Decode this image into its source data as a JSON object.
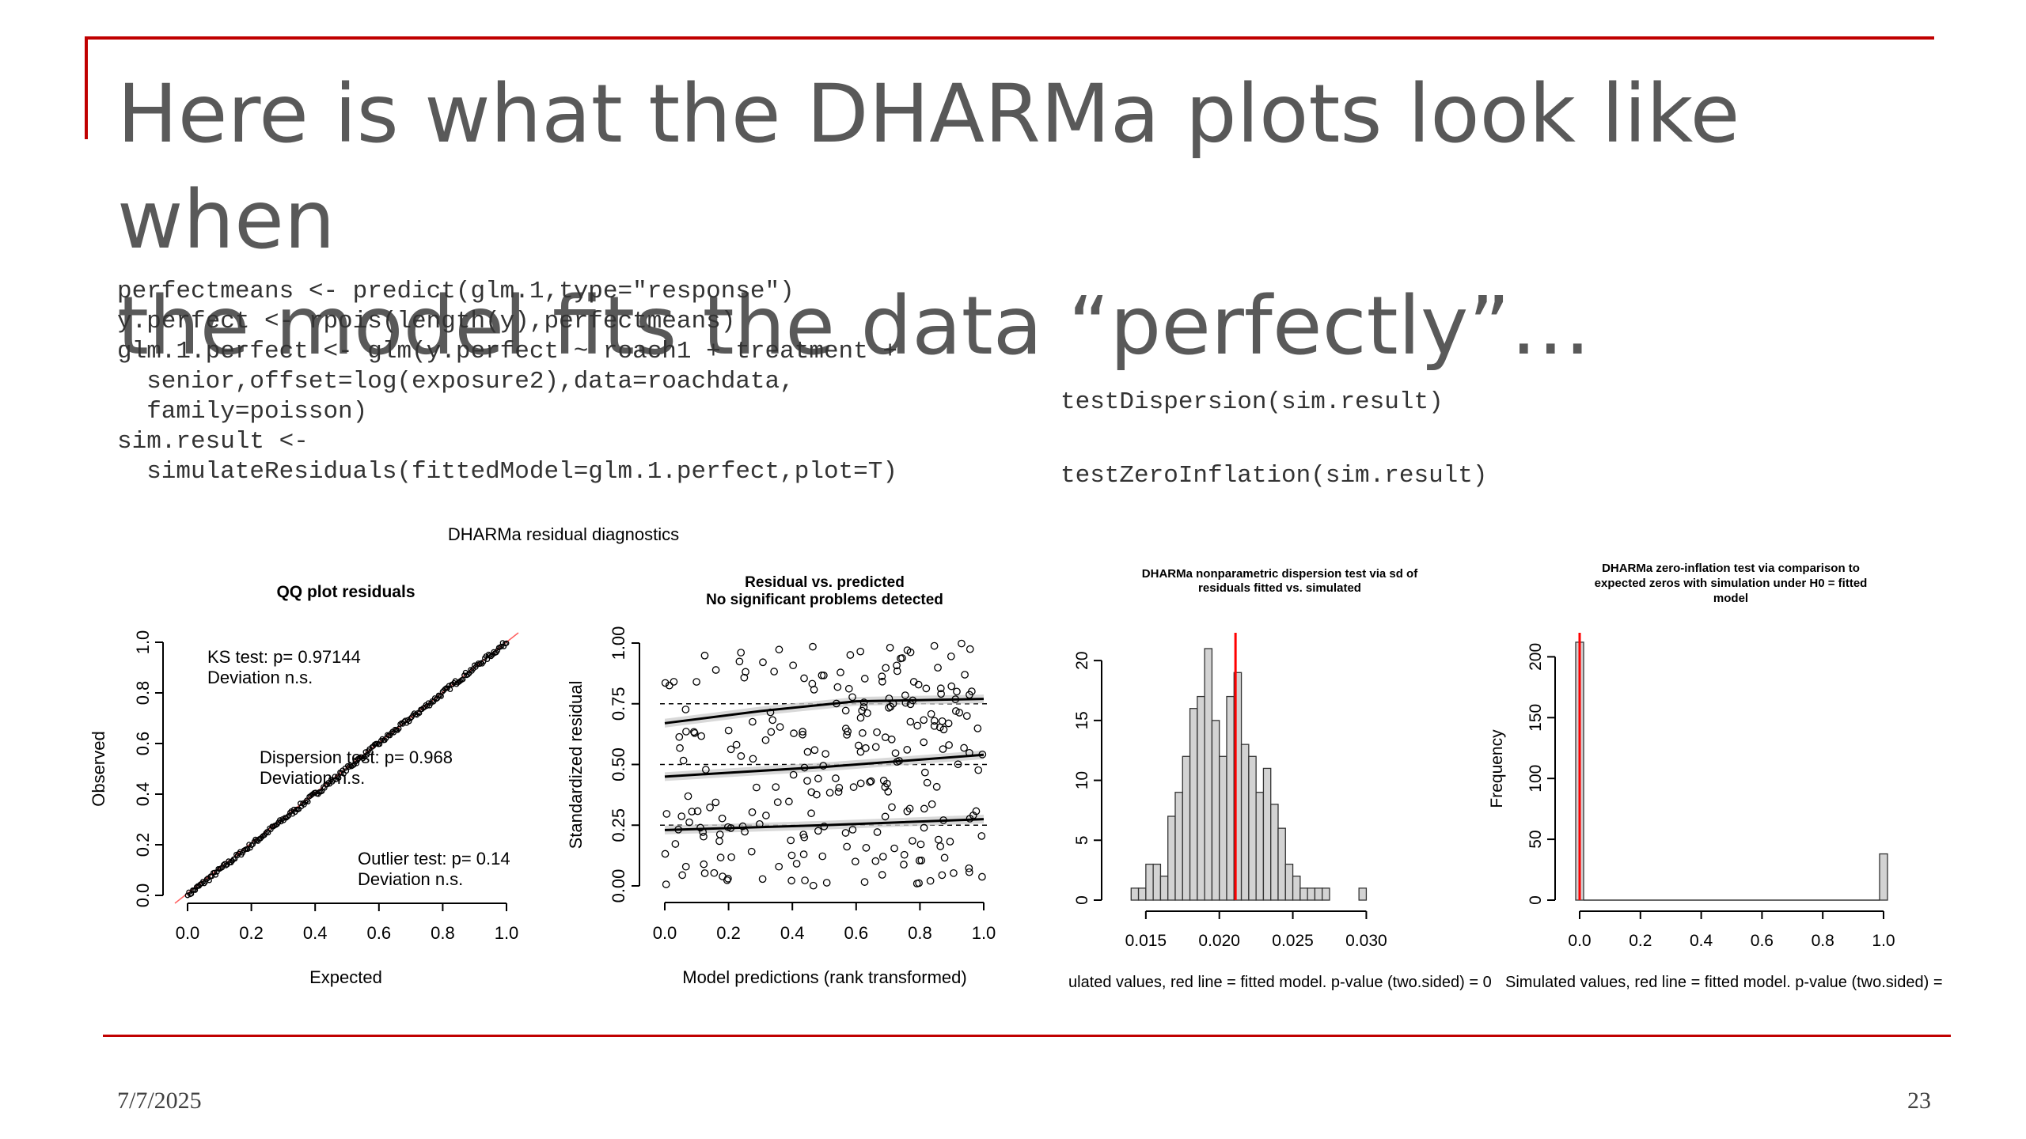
{
  "slide": {
    "title_line1": "Here is what the DHARMa plots look like when",
    "title_line2": "the model fits the data “perfectly”…",
    "date": "7/7/2025",
    "page_number": "23"
  },
  "code_left": [
    "perfectmeans <- predict(glm.1,type=\"response\")",
    "y.perfect <- rpois(length(y),perfectmeans)",
    "glm.1.perfect <- glm(y.perfect ~ roach1 + treatment +",
    "  senior,offset=log(exposure2),data=roachdata,",
    "  family=poisson)",
    "sim.result <-",
    "  simulateResiduals(fittedModel=glm.1.perfect,plot=T)"
  ],
  "code_right": [
    "testDispersion(sim.result)",
    "testZeroInflation(sim.result)"
  ],
  "colors": {
    "accent": "#c00000",
    "hist_fill": "#d3d3d3",
    "red_line": "#ff0000"
  },
  "chart_data": [
    {
      "type": "scatter",
      "supertitle": "DHARMa residual diagnostics",
      "title": "QQ plot residuals",
      "xlabel": "Expected",
      "ylabel": "Observed",
      "xlim": [
        0,
        1
      ],
      "ylim": [
        0,
        1
      ],
      "xticks": [
        "0.0",
        "0.2",
        "0.4",
        "0.6",
        "0.8",
        "1.0"
      ],
      "yticks": [
        "0.0",
        "0.2",
        "0.4",
        "0.6",
        "0.8",
        "1.0"
      ],
      "tick_values": [
        0,
        0.2,
        0.4,
        0.6,
        0.8,
        1.0
      ],
      "annotations": [
        [
          "KS test: p= 0.97144",
          "Deviation n.s."
        ],
        [
          "Dispersion test: p= 0.968",
          "Deviation n.s."
        ],
        [
          "Outlier test: p= 0.14",
          "Deviation n.s."
        ]
      ]
    },
    {
      "type": "scatter",
      "title": [
        "Residual vs. predicted",
        "No significant problems detected"
      ],
      "xlabel": "Model predictions (rank transformed)",
      "ylabel": "Standardized residual",
      "xlim": [
        0,
        1
      ],
      "ylim": [
        0,
        1
      ],
      "xticks": [
        "0.0",
        "0.2",
        "0.4",
        "0.6",
        "0.8",
        "1.0"
      ],
      "yticks": [
        "0.00",
        "0.25",
        "0.50",
        "0.75",
        "1.00"
      ],
      "x_tick_values": [
        0,
        0.2,
        0.4,
        0.6,
        0.8,
        1.0
      ],
      "y_tick_values": [
        0,
        0.25,
        0.5,
        0.75,
        1.0
      ],
      "reference_lines": [
        0.25,
        0.5,
        0.75
      ],
      "quantile_fits": [
        {
          "x": [
            0,
            0.5,
            1
          ],
          "y": [
            0.23,
            0.25,
            0.275
          ]
        },
        {
          "x": [
            0,
            0.5,
            1
          ],
          "y": [
            0.45,
            0.49,
            0.54
          ]
        },
        {
          "x": [
            0,
            0.3,
            0.6,
            1
          ],
          "y": [
            0.67,
            0.72,
            0.76,
            0.77
          ]
        }
      ]
    },
    {
      "type": "bar",
      "title": [
        "DHARMa nonparametric dispersion test via sd of",
        "residuals fitted vs. simulated"
      ],
      "xlabel": "ulated values, red line = fitted model. p-value (two.sided) = 0",
      "ylabel": "",
      "xlim": [
        0.0135,
        0.0345
      ],
      "ylim": [
        0,
        21
      ],
      "xticks": [
        "0.015",
        "0.020",
        "0.025",
        "0.030"
      ],
      "x_tick_values": [
        0.015,
        0.02,
        0.025,
        0.03
      ],
      "yticks": [
        "0",
        "5",
        "10",
        "15",
        "20"
      ],
      "y_tick_values": [
        0,
        5,
        10,
        15,
        20
      ],
      "bin_start": 0.014,
      "bin_width": 0.0005,
      "counts": [
        1,
        1,
        3,
        3,
        2,
        7,
        9,
        12,
        16,
        17,
        21,
        15,
        12,
        17,
        19,
        13,
        12,
        9,
        11,
        8,
        6,
        3,
        2,
        1,
        1,
        1,
        1,
        0,
        0,
        0,
        0,
        1
      ],
      "red_line": 0.0211
    },
    {
      "type": "bar",
      "title": [
        "DHARMa zero-inflation test via comparison to",
        "expected zeros with simulation under H0 = fitted",
        "model"
      ],
      "xlabel": "Simulated values, red line = fitted model. p-value (two.sided) =",
      "ylabel": "Frequency",
      "xlim": [
        0,
        1
      ],
      "ylim": [
        0,
        210
      ],
      "xticks": [
        "0.0",
        "0.2",
        "0.4",
        "0.6",
        "0.8",
        "1.0"
      ],
      "x_tick_values": [
        0,
        0.2,
        0.4,
        0.6,
        0.8,
        1.0
      ],
      "yticks": [
        "0",
        "50",
        "100",
        "150",
        "200"
      ],
      "y_tick_values": [
        0,
        50,
        100,
        150,
        200
      ],
      "bins": [
        {
          "x": 0.0,
          "count": 212
        },
        {
          "x": 1.0,
          "count": 38
        }
      ],
      "red_line": 0.0
    }
  ]
}
